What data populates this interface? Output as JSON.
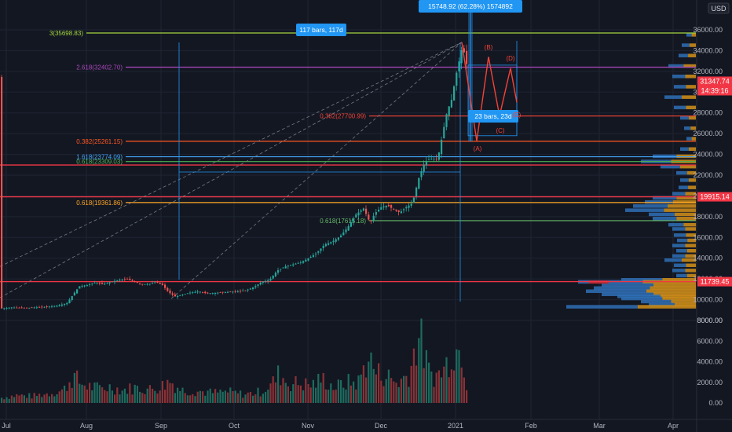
{
  "chart_data": {
    "type": "candlestick",
    "currency": "USD",
    "y_axis": {
      "ticks": [
        36000,
        34000,
        32000,
        30000,
        28000,
        26000,
        24000,
        22000,
        20000,
        18000,
        16000,
        14000,
        12000,
        10000,
        8000
      ],
      "range": [
        8000,
        38000
      ]
    },
    "x_axis": {
      "labels": [
        "Jul",
        "Aug",
        "Sep",
        "Oct",
        "Nov",
        "Dec",
        "2021",
        "Feb",
        "Mar",
        "Apr"
      ]
    },
    "volume_axis": {
      "ticks": [
        8000,
        6000,
        4000,
        2000,
        0
      ],
      "tick_labels": [
        "8000.00",
        "6000.00",
        "4000.00",
        "2000.00",
        "0.00"
      ]
    },
    "price_tags": [
      {
        "value": 31347.74,
        "label": "31347.74",
        "color": "#f23645"
      },
      {
        "label": "14:39:16",
        "color": "#f23645"
      },
      {
        "value": 19915.14,
        "label": "19915.14",
        "color": "#f23645"
      },
      {
        "value": 11739.45,
        "label": "11739.45",
        "color": "#f23645"
      }
    ],
    "fib_levels": [
      {
        "label": "3(35698.83)",
        "value": 35698.83,
        "color": "#a5d63f"
      },
      {
        "label": "2.618(32402.70)",
        "value": 32402.7,
        "color": "#ab47bc"
      },
      {
        "label": "0.382(27700.99)",
        "value": 27700.99,
        "color": "#f44336"
      },
      {
        "label": "0.382(25261.15)",
        "value": 25261.15,
        "color": "#ff5722"
      },
      {
        "label": "1.618(23774.09)",
        "value": 23774.09,
        "color": "#42a5f5"
      },
      {
        "label": "0.618(23309.03)",
        "value": 23309.03,
        "color": "#4caf50"
      },
      {
        "label": "0.618(19361.86)",
        "value": 19361.86,
        "color": "#ffa726"
      },
      {
        "label": "0.618(17615.18)",
        "value": 17615.18,
        "color": "#66bb6a"
      }
    ],
    "horizontal_levels": [
      {
        "value": 22980,
        "color": "#f23645"
      },
      {
        "value": 19915.14,
        "color": "#f23645"
      },
      {
        "value": 11739.45,
        "color": "#f23645"
      }
    ],
    "annotations": [
      {
        "text": "15748.92 (62.28%) 1574892",
        "color": "#2196f3"
      },
      {
        "text": "117 bars, 117d",
        "color": "#2196f3"
      },
      {
        "text": "23 bars, 23d",
        "color": "#2196f3"
      }
    ],
    "wave_labels": [
      "(B)",
      "(D)",
      "(E)",
      "(C)",
      "(A)"
    ],
    "price_path": [
      [
        0,
        9150
      ],
      [
        14,
        9250
      ],
      [
        28,
        9200
      ],
      [
        42,
        9250
      ],
      [
        56,
        9300
      ],
      [
        70,
        9400
      ],
      [
        84,
        9650
      ],
      [
        92,
        10500
      ],
      [
        100,
        11300
      ],
      [
        110,
        11400
      ],
      [
        120,
        11650
      ],
      [
        130,
        11500
      ],
      [
        140,
        11700
      ],
      [
        150,
        11900
      ],
      [
        160,
        12000
      ],
      [
        168,
        11800
      ],
      [
        178,
        11500
      ],
      [
        188,
        11500
      ],
      [
        198,
        11700
      ],
      [
        206,
        11400
      ],
      [
        214,
        10700
      ],
      [
        222,
        10300
      ],
      [
        232,
        10500
      ],
      [
        242,
        10700
      ],
      [
        252,
        10800
      ],
      [
        262,
        10600
      ],
      [
        272,
        10650
      ],
      [
        282,
        10700
      ],
      [
        292,
        10750
      ],
      [
        302,
        10800
      ],
      [
        312,
        10900
      ],
      [
        322,
        11200
      ],
      [
        332,
        11700
      ],
      [
        342,
        11900
      ],
      [
        352,
        12800
      ],
      [
        362,
        13200
      ],
      [
        372,
        13400
      ],
      [
        382,
        13600
      ],
      [
        392,
        14000
      ],
      [
        402,
        14500
      ],
      [
        412,
        15300
      ],
      [
        422,
        15600
      ],
      [
        432,
        16100
      ],
      [
        442,
        17000
      ],
      [
        452,
        18200
      ],
      [
        462,
        18800
      ],
      [
        470,
        17400
      ],
      [
        476,
        18300
      ],
      [
        484,
        18900
      ],
      [
        492,
        19100
      ],
      [
        500,
        18700
      ],
      [
        508,
        18400
      ],
      [
        516,
        18900
      ],
      [
        524,
        19300
      ],
      [
        532,
        21700
      ],
      [
        540,
        23300
      ],
      [
        548,
        23600
      ],
      [
        556,
        23500
      ],
      [
        562,
        25800
      ],
      [
        568,
        28100
      ],
      [
        574,
        29300
      ],
      [
        580,
        31800
      ],
      [
        585,
        33500
      ],
      [
        588,
        34500
      ],
      [
        592,
        33000
      ],
      [
        597,
        31500
      ]
    ],
    "volume_path": [
      [
        0,
        600
      ],
      [
        20,
        900
      ],
      [
        40,
        800
      ],
      [
        60,
        1100
      ],
      [
        80,
        1500
      ],
      [
        92,
        3200
      ],
      [
        100,
        2400
      ],
      [
        110,
        2000
      ],
      [
        125,
        1700
      ],
      [
        140,
        1900
      ],
      [
        155,
        1500
      ],
      [
        170,
        1800
      ],
      [
        190,
        1600
      ],
      [
        205,
        2000
      ],
      [
        215,
        2600
      ],
      [
        230,
        1500
      ],
      [
        250,
        1400
      ],
      [
        270,
        1200
      ],
      [
        290,
        1300
      ],
      [
        310,
        1000
      ],
      [
        330,
        1300
      ],
      [
        345,
        2200
      ],
      [
        355,
        3500
      ],
      [
        365,
        2300
      ],
      [
        380,
        2300
      ],
      [
        395,
        2100
      ],
      [
        410,
        2800
      ],
      [
        425,
        1800
      ],
      [
        440,
        2400
      ],
      [
        455,
        2400
      ],
      [
        468,
        5500
      ],
      [
        478,
        3500
      ],
      [
        490,
        3300
      ],
      [
        505,
        2300
      ],
      [
        520,
        3500
      ],
      [
        532,
        8200
      ],
      [
        545,
        3600
      ],
      [
        555,
        3200
      ],
      [
        565,
        4000
      ],
      [
        572,
        5800
      ],
      [
        578,
        6500
      ],
      [
        584,
        6000
      ],
      [
        588,
        7000
      ],
      [
        592,
        2200
      ]
    ],
    "volume_profile": [
      [
        35500,
        12
      ],
      [
        34500,
        18
      ],
      [
        33500,
        22
      ],
      [
        32500,
        35
      ],
      [
        31500,
        30
      ],
      [
        30500,
        28
      ],
      [
        29500,
        40
      ],
      [
        28500,
        28
      ],
      [
        27500,
        20
      ],
      [
        26500,
        15
      ],
      [
        25500,
        12
      ],
      [
        24500,
        20
      ],
      [
        23800,
        55
      ],
      [
        23300,
        70
      ],
      [
        22800,
        45
      ],
      [
        22200,
        25
      ],
      [
        21500,
        20
      ],
      [
        20800,
        22
      ],
      [
        20200,
        30
      ],
      [
        19800,
        55
      ],
      [
        19400,
        65
      ],
      [
        19000,
        80
      ],
      [
        18600,
        90
      ],
      [
        18200,
        60
      ],
      [
        17800,
        55
      ],
      [
        17200,
        35
      ],
      [
        16800,
        30
      ],
      [
        16200,
        28
      ],
      [
        15700,
        24
      ],
      [
        15200,
        30
      ],
      [
        14700,
        25
      ],
      [
        14200,
        30
      ],
      [
        13800,
        40
      ],
      [
        13300,
        28
      ],
      [
        12800,
        30
      ],
      [
        12300,
        25
      ],
      [
        11900,
        95
      ],
      [
        11700,
        150
      ],
      [
        11400,
        120
      ],
      [
        11100,
        130
      ],
      [
        10800,
        140
      ],
      [
        10500,
        120
      ],
      [
        10300,
        100
      ],
      [
        10100,
        95
      ],
      [
        9800,
        70
      ],
      [
        9500,
        60
      ],
      [
        9300,
        165
      ]
    ]
  }
}
